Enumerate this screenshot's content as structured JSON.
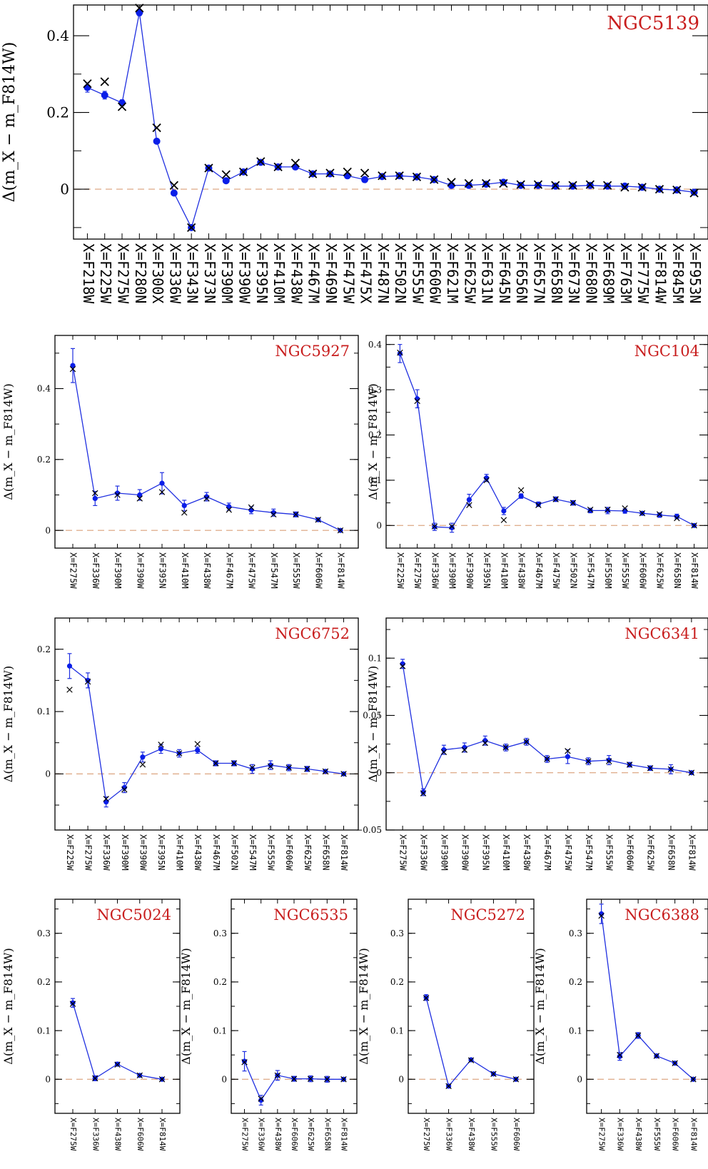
{
  "chart_data": [
    {
      "type": "scatter",
      "title": "NGC5139",
      "ylabel": "Δ(m_X − m_F814W)",
      "ylim": [
        -0.13,
        0.48
      ],
      "yticks": [
        {
          "v": 0,
          "label": "0"
        },
        {
          "v": 0.2,
          "label": "0.2"
        },
        {
          "v": 0.4,
          "label": "0.4"
        }
      ],
      "categories": [
        "X=F218W",
        "X=F225W",
        "X=F275W",
        "X=F280N",
        "X=F300X",
        "X=F336W",
        "X=F343N",
        "X=F373N",
        "X=F390M",
        "X=F390W",
        "X=F395N",
        "X=F410M",
        "X=F438W",
        "X=F467M",
        "X=F469N",
        "X=F475W",
        "X=F475X",
        "X=F487N",
        "X=F502N",
        "X=F555W",
        "X=F606W",
        "X=F621M",
        "X=F625W",
        "X=F631N",
        "X=F645N",
        "X=F656N",
        "X=F657N",
        "X=F658N",
        "X=F673N",
        "X=F680N",
        "X=F689M",
        "X=F763M",
        "X=F775W",
        "X=F814W",
        "X=F845M",
        "X=F953N"
      ],
      "observed": [
        0.265,
        0.245,
        0.225,
        0.46,
        0.125,
        -0.01,
        -0.1,
        0.055,
        0.022,
        0.045,
        0.07,
        0.058,
        0.058,
        0.04,
        0.04,
        0.035,
        0.025,
        0.033,
        0.035,
        0.032,
        0.025,
        0.01,
        0.01,
        0.013,
        0.018,
        0.01,
        0.01,
        0.008,
        0.008,
        0.01,
        0.008,
        0.008,
        0.005,
        0.0,
        -0.002,
        -0.008
      ],
      "errors": [
        0.012,
        0.01,
        0.008,
        0.008,
        0.005,
        0.005,
        0.005,
        0.005,
        0.005,
        0.005,
        0.005,
        0.005,
        0.005,
        0.005,
        0.005,
        0.005,
        0.005,
        0.004,
        0.004,
        0.004,
        0.004,
        0.004,
        0.004,
        0.004,
        0.004,
        0.004,
        0.004,
        0.004,
        0.004,
        0.004,
        0.004,
        0.004,
        0.004,
        0.004,
        0.004,
        0.004
      ],
      "model": [
        0.275,
        0.28,
        0.215,
        0.472,
        0.16,
        0.01,
        -0.1,
        0.055,
        0.038,
        0.045,
        0.072,
        0.058,
        0.068,
        0.04,
        0.042,
        0.045,
        0.042,
        0.035,
        0.035,
        0.032,
        0.025,
        0.018,
        0.015,
        0.015,
        0.015,
        0.012,
        0.012,
        0.01,
        0.01,
        0.012,
        0.01,
        0.005,
        0.005,
        0.0,
        -0.002,
        -0.01
      ]
    },
    {
      "type": "scatter",
      "title": "NGC5927",
      "ylabel": "Δ(m_X − m_F814W)",
      "ylim": [
        -0.05,
        0.55
      ],
      "yticks": [
        {
          "v": 0,
          "label": "0"
        },
        {
          "v": 0.2,
          "label": "0.2"
        },
        {
          "v": 0.4,
          "label": "0.4"
        }
      ],
      "categories": [
        "X=F275W",
        "X=F336W",
        "X=F390M",
        "X=F390W",
        "X=F395N",
        "X=F410M",
        "X=F438W",
        "X=F467M",
        "X=F475W",
        "X=F547M",
        "X=F555W",
        "X=F606W",
        "X=F814W"
      ],
      "observed": [
        0.465,
        0.09,
        0.105,
        0.1,
        0.133,
        0.07,
        0.095,
        0.067,
        0.057,
        0.05,
        0.045,
        0.03,
        0.0
      ],
      "errors": [
        0.048,
        0.02,
        0.02,
        0.015,
        0.03,
        0.015,
        0.012,
        0.01,
        0.01,
        0.01,
        0.007,
        0.004,
        0.002
      ],
      "model": [
        0.455,
        0.105,
        0.1,
        0.09,
        0.108,
        0.05,
        0.09,
        0.058,
        0.065,
        0.045,
        0.045,
        0.03,
        0.0
      ]
    },
    {
      "type": "scatter",
      "title": "NGC104",
      "ylabel": "Δ(m_X − m_F814W)",
      "ylim": [
        -0.05,
        0.42
      ],
      "yticks": [
        {
          "v": 0,
          "label": "0"
        },
        {
          "v": 0.1,
          "label": "0.1"
        },
        {
          "v": 0.2,
          "label": "0.2"
        },
        {
          "v": 0.3,
          "label": "0.3"
        },
        {
          "v": 0.4,
          "label": "0.4"
        }
      ],
      "categories": [
        "X=F225W",
        "X=F275W",
        "X=F336W",
        "X=F390M",
        "X=F390W",
        "X=F395N",
        "X=F410M",
        "X=F438W",
        "X=F467M",
        "X=F475W",
        "X=F502N",
        "X=F547M",
        "X=F550M",
        "X=F555W",
        "X=F606W",
        "X=F625W",
        "X=F658N",
        "X=F814W"
      ],
      "observed": [
        0.38,
        0.28,
        -0.003,
        -0.005,
        0.057,
        0.105,
        0.032,
        0.065,
        0.047,
        0.058,
        0.05,
        0.033,
        0.033,
        0.032,
        0.027,
        0.023,
        0.02,
        0.0
      ],
      "errors": [
        0.02,
        0.02,
        0.008,
        0.01,
        0.012,
        0.008,
        0.008,
        0.005,
        0.005,
        0.005,
        0.005,
        0.005,
        0.007,
        0.005,
        0.004,
        0.005,
        0.005,
        0.002
      ],
      "model": [
        0.382,
        0.275,
        -0.002,
        -0.002,
        0.045,
        0.1,
        0.012,
        0.078,
        0.045,
        0.058,
        0.05,
        0.035,
        0.035,
        0.038,
        0.027,
        0.025,
        0.016,
        0.0
      ]
    },
    {
      "type": "scatter",
      "title": "NGC6752",
      "ylabel": "Δ(m_X − m_F814W)",
      "ylim": [
        -0.09,
        0.25
      ],
      "yticks": [
        {
          "v": 0,
          "label": "0"
        },
        {
          "v": 0.1,
          "label": "0.1"
        },
        {
          "v": 0.2,
          "label": "0.2"
        }
      ],
      "categories": [
        "X=F225W",
        "X=F275W",
        "X=F336W",
        "X=F390M",
        "X=F390W",
        "X=F395N",
        "X=F410M",
        "X=F438W",
        "X=F467M",
        "X=F502N",
        "X=F547M",
        "X=F555W",
        "X=F606W",
        "X=F625W",
        "X=F658N",
        "X=F814W"
      ],
      "observed": [
        0.173,
        0.15,
        -0.045,
        -0.022,
        0.027,
        0.04,
        0.033,
        0.038,
        0.017,
        0.017,
        0.008,
        0.014,
        0.01,
        0.008,
        0.004,
        0.0
      ],
      "errors": [
        0.02,
        0.012,
        0.008,
        0.008,
        0.008,
        0.007,
        0.006,
        0.005,
        0.004,
        0.004,
        0.007,
        0.007,
        0.005,
        0.004,
        0.003,
        0.002
      ],
      "model": [
        0.135,
        0.148,
        -0.04,
        -0.025,
        0.015,
        0.047,
        0.033,
        0.048,
        0.017,
        0.017,
        0.01,
        0.012,
        0.01,
        0.008,
        0.004,
        0.0
      ]
    },
    {
      "type": "scatter",
      "title": "NGC6341",
      "ylabel": "Δ(m_X − m_F814W)",
      "ylim": [
        -0.05,
        0.135
      ],
      "yticks": [
        {
          "v": -0.05,
          "label": "−0.05"
        },
        {
          "v": 0,
          "label": "0"
        },
        {
          "v": 0.05,
          "label": "0.05"
        },
        {
          "v": 0.1,
          "label": "0.1"
        }
      ],
      "categories": [
        "X=F275W",
        "X=F336W",
        "X=F390M",
        "X=F390W",
        "X=F395N",
        "X=F410M",
        "X=F438W",
        "X=F467M",
        "X=F475W",
        "X=F547M",
        "X=F555W",
        "X=F606W",
        "X=F625W",
        "X=F658N",
        "X=F814W"
      ],
      "observed": [
        0.095,
        -0.017,
        0.02,
        0.022,
        0.028,
        0.022,
        0.027,
        0.012,
        0.014,
        0.01,
        0.011,
        0.007,
        0.004,
        0.003,
        0.0
      ],
      "errors": [
        0.004,
        0.003,
        0.004,
        0.004,
        0.004,
        0.003,
        0.003,
        0.003,
        0.006,
        0.003,
        0.004,
        0.002,
        0.002,
        0.004,
        0.001
      ],
      "model": [
        0.093,
        -0.018,
        0.018,
        0.02,
        0.026,
        0.022,
        0.027,
        0.012,
        0.019,
        0.01,
        0.01,
        0.007,
        0.004,
        0.003,
        0.0
      ]
    },
    {
      "type": "scatter",
      "title": "NGC5024",
      "ylabel": "Δ(m_X − m_F814W)",
      "ylim": [
        -0.07,
        0.37
      ],
      "yticks": [
        {
          "v": 0,
          "label": "0"
        },
        {
          "v": 0.1,
          "label": "0.1"
        },
        {
          "v": 0.2,
          "label": "0.2"
        },
        {
          "v": 0.3,
          "label": "0.3"
        }
      ],
      "categories": [
        "X=F275W",
        "X=F336W",
        "X=F438W",
        "X=F606W",
        "X=F814W"
      ],
      "observed": [
        0.157,
        0.002,
        0.031,
        0.008,
        0.0
      ],
      "errors": [
        0.009,
        0.005,
        0.004,
        0.003,
        0.002
      ],
      "model": [
        0.155,
        0.002,
        0.03,
        0.008,
        0.0
      ]
    },
    {
      "type": "scatter",
      "title": "NGC6535",
      "ylabel": "Δ(m_X − m_F814W)",
      "ylim": [
        -0.07,
        0.37
      ],
      "yticks": [
        {
          "v": 0,
          "label": "0"
        },
        {
          "v": 0.1,
          "label": "0.1"
        },
        {
          "v": 0.2,
          "label": "0.2"
        },
        {
          "v": 0.3,
          "label": "0.3"
        }
      ],
      "categories": [
        "X=F275W",
        "X=F336W",
        "X=F438W",
        "X=F606W",
        "X=F625W",
        "X=F658N",
        "X=F814W"
      ],
      "observed": [
        0.037,
        -0.043,
        0.008,
        0.001,
        0.001,
        0.0,
        0.0
      ],
      "errors": [
        0.02,
        0.01,
        0.01,
        0.005,
        0.006,
        0.006,
        0.002
      ],
      "model": [
        0.035,
        -0.04,
        0.008,
        0.001,
        0.001,
        0.0,
        0.0
      ]
    },
    {
      "type": "scatter",
      "title": "NGC5272",
      "ylabel": "Δ(m_X − m_F814W)",
      "ylim": [
        -0.07,
        0.37
      ],
      "yticks": [
        {
          "v": 0,
          "label": "0"
        },
        {
          "v": 0.1,
          "label": "0.1"
        },
        {
          "v": 0.2,
          "label": "0.2"
        },
        {
          "v": 0.3,
          "label": "0.3"
        }
      ],
      "categories": [
        "X=F275W",
        "X=F336W",
        "X=F438W",
        "X=F555W",
        "X=F606W"
      ],
      "observed": [
        0.168,
        -0.014,
        0.04,
        0.011,
        0.0
      ],
      "errors": [
        0.006,
        0.004,
        0.003,
        0.002,
        0.002
      ],
      "model": [
        0.167,
        -0.014,
        0.039,
        0.011,
        0.0
      ]
    },
    {
      "type": "scatter",
      "title": "NGC6388",
      "ylabel": "Δ(m_X − m_F814W)",
      "ylim": [
        -0.07,
        0.37
      ],
      "yticks": [
        {
          "v": 0,
          "label": "0"
        },
        {
          "v": 0.1,
          "label": "0.1"
        },
        {
          "v": 0.2,
          "label": "0.2"
        },
        {
          "v": 0.3,
          "label": "0.3"
        }
      ],
      "categories": [
        "X=F275W",
        "X=F336W",
        "X=F438W",
        "X=F555W",
        "X=F606W",
        "X=F814W"
      ],
      "observed": [
        0.34,
        0.047,
        0.09,
        0.048,
        0.033,
        0.0
      ],
      "errors": [
        0.02,
        0.008,
        0.006,
        0.004,
        0.003,
        0.002
      ],
      "model": [
        0.336,
        0.05,
        0.09,
        0.048,
        0.033,
        0.0
      ]
    }
  ],
  "colors": {
    "line": "#1f2fe0",
    "point": "#0a1ee8",
    "model_marker": "#000000",
    "zero_line": "#e0b090",
    "title": "#c81e1e"
  }
}
